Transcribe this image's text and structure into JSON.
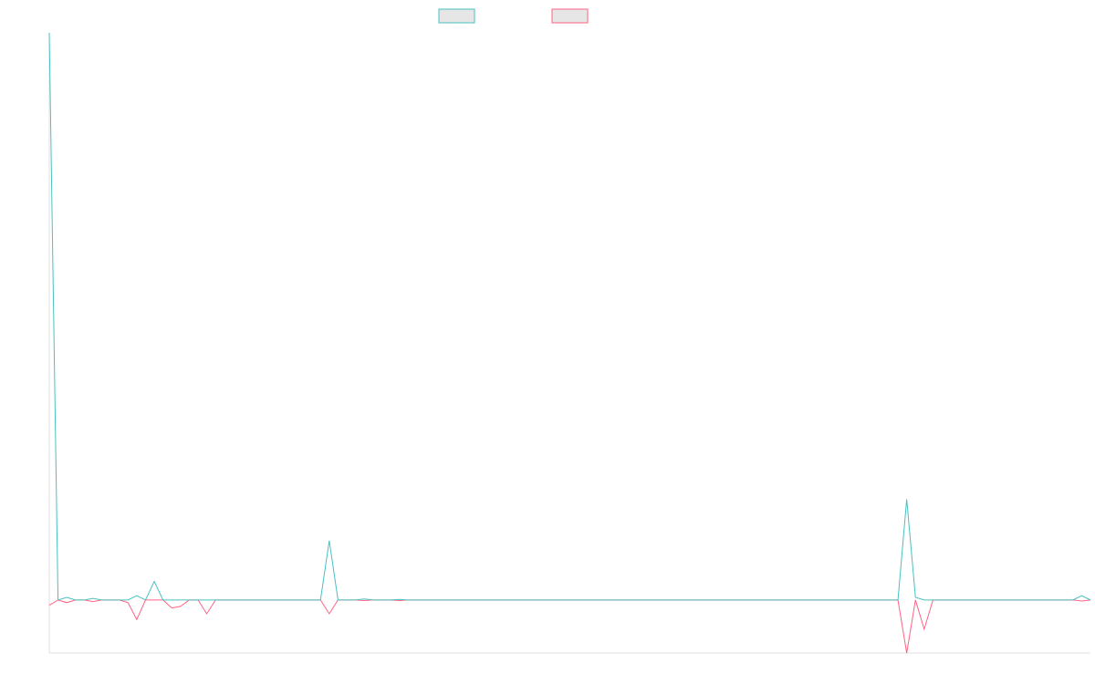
{
  "colors": {
    "series_a": "#4BC0C0",
    "series_b": "#FF6384",
    "legend_fill": "#E6E6E6",
    "axis": "#E0E0E0"
  },
  "chart_data": {
    "type": "line",
    "title": "",
    "xlabel": "",
    "ylabel": "",
    "grid": false,
    "legend_placement": "top-center",
    "x": [
      0,
      1,
      2,
      3,
      4,
      5,
      6,
      7,
      8,
      9,
      10,
      11,
      12,
      13,
      14,
      15,
      16,
      17,
      18,
      19,
      20,
      21,
      22,
      23,
      24,
      25,
      26,
      27,
      28,
      29,
      30,
      31,
      32,
      33,
      34,
      35,
      36,
      37,
      38,
      39,
      40,
      41,
      42,
      43,
      44,
      45,
      46,
      47,
      48,
      49,
      50,
      51,
      52,
      53,
      54,
      55,
      56,
      57,
      58,
      59,
      60,
      61,
      62,
      63,
      64,
      65,
      66,
      67,
      68,
      69,
      70,
      71,
      72,
      73,
      74,
      75,
      76,
      77,
      78,
      79,
      80,
      81,
      82,
      83,
      84,
      85,
      86,
      87,
      88,
      89,
      90,
      91,
      92,
      93,
      94,
      95,
      96,
      97,
      98,
      99,
      100,
      101,
      102,
      103,
      104,
      105,
      106,
      107,
      108,
      109,
      110,
      111,
      112,
      113,
      114,
      115,
      116,
      117,
      118,
      119
    ],
    "ylim": [
      -10,
      107
    ],
    "series": [
      {
        "values": [
          107,
          0,
          0.5,
          0,
          0,
          0.3,
          0,
          0,
          0,
          0,
          0.8,
          0,
          3.5,
          0,
          0,
          0,
          0,
          0,
          0,
          0,
          0,
          0,
          0,
          0,
          0,
          0,
          0,
          0,
          0,
          0,
          0,
          0,
          11.2,
          0,
          0,
          0,
          0.2,
          0,
          0,
          0,
          0.1,
          0,
          0,
          0,
          0,
          0,
          0,
          0,
          0,
          0,
          0,
          0,
          0,
          0,
          0,
          0,
          0,
          0,
          0,
          0,
          0,
          0,
          0,
          0,
          0,
          0,
          0,
          0,
          0,
          0,
          0,
          0,
          0,
          0,
          0,
          0,
          0,
          0,
          0,
          0,
          0,
          0,
          0,
          0,
          0,
          0,
          0,
          0,
          0,
          0,
          0,
          0,
          0,
          0,
          0,
          0,
          0,
          0,
          19,
          0.5,
          0,
          0,
          0,
          0,
          0,
          0,
          0,
          0,
          0,
          0,
          0,
          0,
          0,
          0,
          0,
          0,
          0,
          0,
          0.8,
          0
        ]
      },
      {
        "values": [
          -1,
          0,
          -0.5,
          0,
          0,
          -0.3,
          0,
          0,
          0,
          -0.5,
          -3.7,
          0,
          0,
          0,
          -1.5,
          -1.2,
          0,
          0,
          -2.6,
          0,
          0,
          0,
          0,
          0,
          0,
          0,
          0,
          0,
          0,
          0,
          0,
          0,
          -2.6,
          0,
          0,
          0,
          -0.1,
          0,
          0,
          0,
          -0.1,
          0,
          0,
          0,
          0,
          0,
          0,
          0,
          0,
          0,
          0,
          0,
          0,
          0,
          0,
          0,
          0,
          0,
          0,
          0,
          0,
          0,
          0,
          0,
          0,
          0,
          0,
          0,
          0,
          0,
          0,
          0,
          0,
          0,
          0,
          0,
          0,
          0,
          0,
          0,
          0,
          0,
          0,
          0,
          0,
          0,
          0,
          0,
          0,
          0,
          0,
          0,
          0,
          0,
          0,
          0,
          0,
          0,
          -10,
          0,
          -5.5,
          0,
          0,
          0,
          0,
          0,
          0,
          0,
          0,
          0,
          0,
          0,
          0,
          0,
          0,
          0,
          0,
          0,
          -0.2,
          0
        ]
      }
    ]
  }
}
